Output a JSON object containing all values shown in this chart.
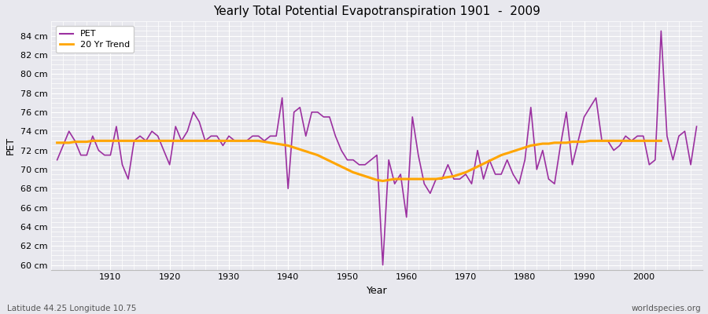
{
  "title": "Yearly Total Potential Evapotranspiration 1901  -  2009",
  "xlabel": "Year",
  "ylabel": "PET",
  "lat_lon_label": "Latitude 44.25 Longitude 10.75",
  "watermark": "worldspecies.org",
  "pet_color": "#9B30A0",
  "trend_color": "#FFA500",
  "bg_color": "#E8E8EE",
  "grid_color": "#FFFFFF",
  "ylim": [
    59.5,
    85.5
  ],
  "yticks": [
    60,
    62,
    64,
    66,
    68,
    70,
    72,
    74,
    76,
    78,
    80,
    82,
    84
  ],
  "xlim": [
    1900,
    2010
  ],
  "xticks": [
    1910,
    1920,
    1930,
    1940,
    1950,
    1960,
    1970,
    1980,
    1990,
    2000
  ],
  "years": [
    1901,
    1902,
    1903,
    1904,
    1905,
    1906,
    1907,
    1908,
    1909,
    1910,
    1911,
    1912,
    1913,
    1914,
    1915,
    1916,
    1917,
    1918,
    1919,
    1920,
    1921,
    1922,
    1923,
    1924,
    1925,
    1926,
    1927,
    1928,
    1929,
    1930,
    1931,
    1932,
    1933,
    1934,
    1935,
    1936,
    1937,
    1938,
    1939,
    1940,
    1941,
    1942,
    1943,
    1944,
    1945,
    1946,
    1947,
    1948,
    1949,
    1950,
    1951,
    1952,
    1953,
    1954,
    1955,
    1956,
    1957,
    1958,
    1959,
    1960,
    1961,
    1962,
    1963,
    1964,
    1965,
    1966,
    1967,
    1968,
    1969,
    1970,
    1971,
    1972,
    1973,
    1974,
    1975,
    1976,
    1977,
    1978,
    1979,
    1980,
    1981,
    1982,
    1983,
    1984,
    1985,
    1986,
    1987,
    1988,
    1989,
    1990,
    1991,
    1992,
    1993,
    1994,
    1995,
    1996,
    1997,
    1998,
    1999,
    2000,
    2001,
    2002,
    2003,
    2004,
    2005,
    2006,
    2007,
    2008,
    2009
  ],
  "pet_values": [
    71.0,
    72.5,
    74.0,
    73.0,
    71.5,
    71.5,
    73.5,
    72.0,
    71.5,
    71.5,
    74.5,
    70.5,
    69.0,
    73.0,
    73.5,
    73.0,
    74.0,
    73.5,
    72.0,
    70.5,
    74.5,
    73.0,
    74.0,
    76.0,
    75.0,
    73.0,
    73.5,
    73.5,
    72.5,
    73.5,
    73.0,
    73.0,
    73.0,
    73.5,
    73.5,
    73.0,
    73.5,
    73.5,
    77.5,
    68.0,
    76.0,
    76.5,
    73.5,
    76.0,
    76.0,
    75.5,
    75.5,
    73.5,
    72.0,
    71.0,
    71.0,
    70.5,
    70.5,
    71.0,
    71.5,
    60.0,
    71.0,
    68.5,
    69.5,
    65.0,
    75.5,
    71.5,
    68.5,
    67.5,
    69.0,
    69.0,
    70.5,
    69.0,
    69.0,
    69.5,
    68.5,
    72.0,
    69.0,
    71.0,
    69.5,
    69.5,
    71.0,
    69.5,
    68.5,
    71.0,
    76.5,
    70.0,
    72.0,
    69.0,
    68.5,
    72.5,
    76.0,
    70.5,
    73.0,
    75.5,
    76.5,
    77.5,
    73.0,
    73.0,
    72.0,
    72.5,
    73.5,
    73.0,
    73.5,
    73.5,
    70.5,
    71.0,
    84.5,
    73.5,
    71.0,
    73.5,
    74.0,
    70.5,
    74.5
  ],
  "trend_values": [
    72.8,
    72.8,
    72.8,
    72.9,
    72.9,
    72.9,
    73.0,
    73.0,
    73.0,
    73.0,
    73.0,
    73.0,
    73.0,
    73.0,
    73.0,
    73.0,
    73.0,
    73.0,
    73.0,
    73.0,
    73.0,
    73.0,
    73.0,
    73.0,
    73.0,
    73.0,
    73.0,
    73.0,
    73.0,
    73.0,
    73.0,
    73.0,
    73.0,
    73.0,
    73.0,
    72.9,
    72.8,
    72.7,
    72.6,
    72.5,
    72.3,
    72.1,
    71.9,
    71.7,
    71.5,
    71.2,
    70.9,
    70.6,
    70.3,
    70.0,
    69.7,
    69.5,
    69.3,
    69.1,
    68.9,
    68.8,
    68.9,
    69.0,
    69.0,
    69.0,
    69.0,
    69.0,
    69.0,
    69.0,
    69.0,
    69.1,
    69.2,
    69.3,
    69.5,
    69.7,
    70.0,
    70.3,
    70.6,
    70.9,
    71.2,
    71.5,
    71.7,
    71.9,
    72.1,
    72.3,
    72.5,
    72.6,
    72.7,
    72.7,
    72.8,
    72.8,
    72.8,
    72.9,
    72.9,
    72.9,
    73.0,
    73.0,
    73.0,
    73.0,
    73.0,
    73.0,
    73.0,
    73.0,
    73.0,
    73.0,
    73.0,
    73.0,
    73.0,
    null,
    null,
    null,
    null,
    null,
    null
  ]
}
